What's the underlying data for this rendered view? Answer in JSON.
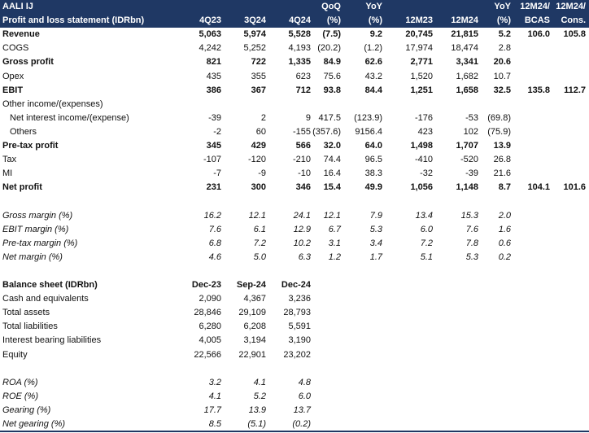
{
  "header": {
    "ticker": "AALI IJ",
    "title": "Profit and loss statement (IDRbn)",
    "columns": [
      [
        "4Q23"
      ],
      [
        "3Q24"
      ],
      [
        "4Q24"
      ],
      [
        "QoQ",
        "(%)"
      ],
      [
        "YoY",
        "(%)"
      ],
      [
        "12M23"
      ],
      [
        "12M24"
      ],
      [
        "YoY",
        "(%)"
      ],
      [
        "12M24/",
        "BCAS"
      ],
      [
        "12M24/",
        "Cons."
      ]
    ]
  },
  "pl": {
    "rows": [
      {
        "label": "Revenue",
        "values": [
          "5,063",
          "5,974",
          "5,528",
          "(7.5)",
          "9.2",
          "20,745",
          "21,815",
          "5.2",
          "106.0",
          "105.8"
        ]
      },
      {
        "label": "COGS",
        "values": [
          "4,242",
          "5,252",
          "4,193",
          "(20.2)",
          "(1.2)",
          "17,974",
          "18,474",
          "2.8"
        ]
      },
      {
        "label": "Gross profit",
        "values": [
          "821",
          "722",
          "1,335",
          "84.9",
          "62.6",
          "2,771",
          "3,341",
          "20.6"
        ]
      },
      {
        "label": "Opex",
        "values": [
          "435",
          "355",
          "623",
          "75.6",
          "43.2",
          "1,520",
          "1,682",
          "10.7"
        ]
      },
      {
        "label": "EBIT",
        "values": [
          "386",
          "367",
          "712",
          "93.8",
          "84.4",
          "1,251",
          "1,658",
          "32.5",
          "135.8",
          "112.7"
        ]
      },
      {
        "label": "Other income/(expenses)",
        "values": []
      },
      {
        "label": "Net interest income/(expense)",
        "values": [
          "-39",
          "2",
          "9",
          "417.5",
          "(123.9)",
          "-176",
          "-53",
          "(69.8)"
        ]
      },
      {
        "label": "Others",
        "values": [
          "-2",
          "60",
          "-155",
          "(357.6)",
          "9156.4",
          "423",
          "102",
          "(75.9)"
        ]
      },
      {
        "label": "Pre-tax profit",
        "values": [
          "345",
          "429",
          "566",
          "32.0",
          "64.0",
          "1,498",
          "1,707",
          "13.9"
        ]
      },
      {
        "label": "Tax",
        "values": [
          "-107",
          "-120",
          "-210",
          "74.4",
          "96.5",
          "-410",
          "-520",
          "26.8"
        ]
      },
      {
        "label": "MI",
        "values": [
          "-7",
          "-9",
          "-10",
          "16.4",
          "38.3",
          "-32",
          "-39",
          "21.6"
        ]
      },
      {
        "label": "Net profit",
        "values": [
          "231",
          "300",
          "346",
          "15.4",
          "49.9",
          "1,056",
          "1,148",
          "8.7",
          "104.1",
          "101.6"
        ]
      }
    ]
  },
  "margins": {
    "rows": [
      {
        "label": "Gross margin (%)",
        "values": [
          "16.2",
          "12.1",
          "24.1",
          "12.1",
          "7.9",
          "13.4",
          "15.3",
          "2.0"
        ]
      },
      {
        "label": "EBIT margin (%)",
        "values": [
          "7.6",
          "6.1",
          "12.9",
          "6.7",
          "5.3",
          "6.0",
          "7.6",
          "1.6"
        ]
      },
      {
        "label": "Pre-tax margin (%)",
        "values": [
          "6.8",
          "7.2",
          "10.2",
          "3.1",
          "3.4",
          "7.2",
          "7.8",
          "0.6"
        ]
      },
      {
        "label": "Net margin (%)",
        "values": [
          "4.6",
          "5.0",
          "6.3",
          "1.2",
          "1.7",
          "5.1",
          "5.3",
          "0.2"
        ]
      }
    ]
  },
  "balance": {
    "title": "Balance sheet (IDRbn)",
    "columns": [
      "Dec-23",
      "Sep-24",
      "Dec-24"
    ],
    "rows": [
      {
        "label": "Cash and equivalents",
        "values": [
          "2,090",
          "4,367",
          "3,236"
        ]
      },
      {
        "label": "Total assets",
        "values": [
          "28,846",
          "29,109",
          "28,793"
        ]
      },
      {
        "label": "Total liabilities",
        "values": [
          "6,280",
          "6,208",
          "5,591"
        ]
      },
      {
        "label": "Interest bearing liabilities",
        "values": [
          "4,005",
          "3,194",
          "3,190"
        ]
      },
      {
        "label": "Equity",
        "values": [
          "22,566",
          "22,901",
          "23,202"
        ]
      }
    ]
  },
  "ratios": {
    "rows": [
      {
        "label": "ROA (%)",
        "values": [
          "3.2",
          "4.1",
          "4.8"
        ]
      },
      {
        "label": "ROE (%)",
        "values": [
          "4.1",
          "5.2",
          "6.0"
        ]
      },
      {
        "label": "Gearing (%)",
        "values": [
          "17.7",
          "13.9",
          "13.7"
        ]
      },
      {
        "label": "Net gearing (%)",
        "values": [
          "8.5",
          "(5.1)",
          "(0.2)"
        ]
      }
    ]
  }
}
